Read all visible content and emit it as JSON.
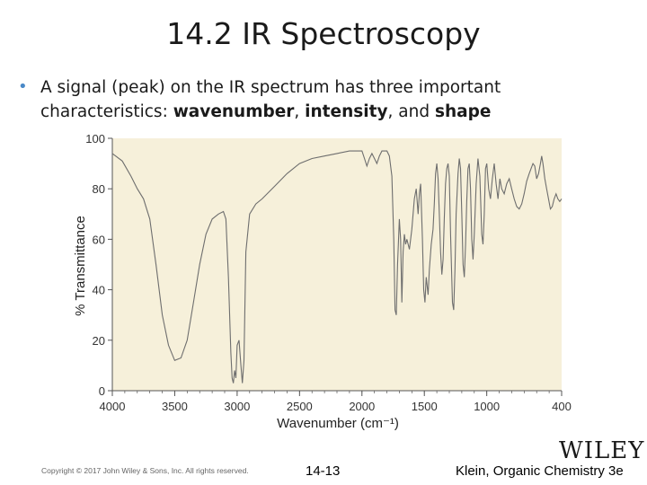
{
  "slide": {
    "title": "14.2 IR Spectroscopy",
    "bullet_marker": "•",
    "bullet_prefix": "A signal (peak) on the IR spectrum has three important characteristics: ",
    "term_wavenumber": "wavenumber",
    "sep1": ", ",
    "term_intensity": "intensity",
    "sep2": ", and ",
    "term_shape": "shape"
  },
  "footer": {
    "copyright": "Copyright © 2017 John Wiley & Sons, Inc. All rights reserved.",
    "page": "14-13",
    "publisher_logo": "WILEY",
    "book": "Klein, Organic Chemistry 3e"
  },
  "colors": {
    "plot_bg": "#f6f0da",
    "line": "#6e6e6e",
    "axis": "#555555",
    "bullet": "#4a89c8"
  },
  "chart_data": {
    "type": "line",
    "title": "",
    "xlabel": "Wavenumber (cm⁻¹)",
    "ylabel": "% Transmittance",
    "xlim": [
      4000,
      400
    ],
    "ylim": [
      0,
      100
    ],
    "grid": false,
    "x_ticks": [
      4000,
      3500,
      3000,
      2500,
      2000,
      1500,
      1000,
      400
    ],
    "y_ticks": [
      0,
      20,
      40,
      60,
      80,
      100
    ],
    "series": [
      {
        "name": "IR spectrum",
        "points": [
          [
            4000,
            94
          ],
          [
            3920,
            91
          ],
          [
            3850,
            85
          ],
          [
            3800,
            80
          ],
          [
            3750,
            76
          ],
          [
            3700,
            68
          ],
          [
            3650,
            50
          ],
          [
            3600,
            30
          ],
          [
            3550,
            18
          ],
          [
            3500,
            12
          ],
          [
            3450,
            13
          ],
          [
            3400,
            20
          ],
          [
            3350,
            35
          ],
          [
            3300,
            50
          ],
          [
            3250,
            62
          ],
          [
            3200,
            68
          ],
          [
            3150,
            70
          ],
          [
            3110,
            71
          ],
          [
            3090,
            68
          ],
          [
            3070,
            45
          ],
          [
            3050,
            15
          ],
          [
            3040,
            5
          ],
          [
            3030,
            3
          ],
          [
            3020,
            8
          ],
          [
            3010,
            5
          ],
          [
            3000,
            18
          ],
          [
            2985,
            20
          ],
          [
            2970,
            10
          ],
          [
            2958,
            3
          ],
          [
            2945,
            12
          ],
          [
            2930,
            55
          ],
          [
            2900,
            70
          ],
          [
            2850,
            74
          ],
          [
            2800,
            76
          ],
          [
            2700,
            81
          ],
          [
            2600,
            86
          ],
          [
            2500,
            90
          ],
          [
            2400,
            92
          ],
          [
            2300,
            93
          ],
          [
            2200,
            94
          ],
          [
            2100,
            95
          ],
          [
            2050,
            95
          ],
          [
            2000,
            95
          ],
          [
            1980,
            92
          ],
          [
            1960,
            89
          ],
          [
            1940,
            92
          ],
          [
            1920,
            94
          ],
          [
            1900,
            92
          ],
          [
            1880,
            90
          ],
          [
            1860,
            93
          ],
          [
            1840,
            95
          ],
          [
            1820,
            95
          ],
          [
            1800,
            95
          ],
          [
            1780,
            93
          ],
          [
            1760,
            85
          ],
          [
            1745,
            60
          ],
          [
            1735,
            32
          ],
          [
            1725,
            30
          ],
          [
            1715,
            50
          ],
          [
            1700,
            68
          ],
          [
            1690,
            60
          ],
          [
            1680,
            35
          ],
          [
            1670,
            55
          ],
          [
            1660,
            62
          ],
          [
            1650,
            58
          ],
          [
            1640,
            60
          ],
          [
            1620,
            56
          ],
          [
            1600,
            64
          ],
          [
            1580,
            76
          ],
          [
            1565,
            80
          ],
          [
            1550,
            70
          ],
          [
            1540,
            78
          ],
          [
            1530,
            82
          ],
          [
            1515,
            60
          ],
          [
            1505,
            40
          ],
          [
            1495,
            35
          ],
          [
            1485,
            45
          ],
          [
            1470,
            38
          ],
          [
            1460,
            48
          ],
          [
            1445,
            58
          ],
          [
            1430,
            64
          ],
          [
            1420,
            74
          ],
          [
            1410,
            86
          ],
          [
            1400,
            90
          ],
          [
            1390,
            84
          ],
          [
            1380,
            70
          ],
          [
            1370,
            55
          ],
          [
            1360,
            46
          ],
          [
            1350,
            52
          ],
          [
            1340,
            68
          ],
          [
            1330,
            82
          ],
          [
            1320,
            88
          ],
          [
            1310,
            90
          ],
          [
            1300,
            85
          ],
          [
            1290,
            62
          ],
          [
            1275,
            35
          ],
          [
            1265,
            32
          ],
          [
            1255,
            48
          ],
          [
            1245,
            70
          ],
          [
            1230,
            86
          ],
          [
            1220,
            92
          ],
          [
            1210,
            88
          ],
          [
            1200,
            70
          ],
          [
            1190,
            50
          ],
          [
            1180,
            45
          ],
          [
            1170,
            58
          ],
          [
            1160,
            75
          ],
          [
            1150,
            88
          ],
          [
            1140,
            90
          ],
          [
            1130,
            80
          ],
          [
            1120,
            60
          ],
          [
            1110,
            52
          ],
          [
            1100,
            62
          ],
          [
            1085,
            82
          ],
          [
            1070,
            92
          ],
          [
            1055,
            85
          ],
          [
            1040,
            62
          ],
          [
            1030,
            58
          ],
          [
            1020,
            70
          ],
          [
            1010,
            88
          ],
          [
            1000,
            90
          ],
          [
            985,
            80
          ],
          [
            970,
            76
          ],
          [
            955,
            84
          ],
          [
            940,
            90
          ],
          [
            925,
            82
          ],
          [
            910,
            76
          ],
          [
            895,
            84
          ],
          [
            880,
            80
          ],
          [
            860,
            78
          ],
          [
            840,
            82
          ],
          [
            820,
            84
          ],
          [
            800,
            80
          ],
          [
            780,
            76
          ],
          [
            760,
            73
          ],
          [
            740,
            72
          ],
          [
            720,
            74
          ],
          [
            700,
            78
          ],
          [
            680,
            83
          ],
          [
            660,
            86
          ],
          [
            645,
            88
          ],
          [
            630,
            90
          ],
          [
            615,
            89
          ],
          [
            600,
            84
          ],
          [
            585,
            86
          ],
          [
            570,
            90
          ],
          [
            560,
            93
          ],
          [
            550,
            90
          ],
          [
            535,
            84
          ],
          [
            520,
            80
          ],
          [
            505,
            76
          ],
          [
            490,
            72
          ],
          [
            475,
            73
          ],
          [
            460,
            76
          ],
          [
            445,
            78
          ],
          [
            430,
            76
          ],
          [
            415,
            75
          ],
          [
            400,
            76
          ]
        ]
      }
    ]
  }
}
